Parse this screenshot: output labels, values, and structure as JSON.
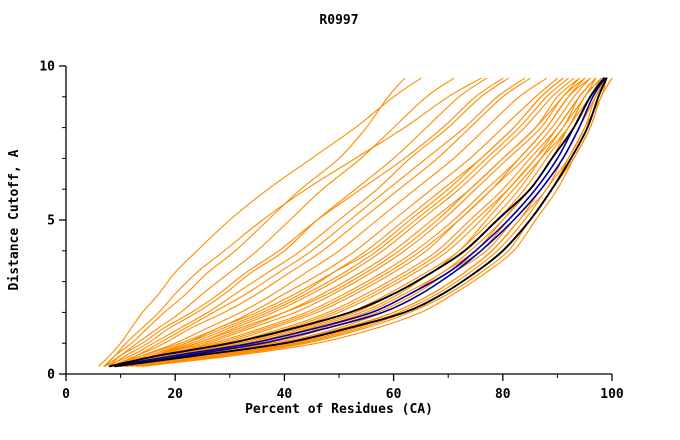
{
  "chart_data": {
    "type": "line",
    "title": "R0997",
    "xlabel": "Percent of Residues (CA)",
    "ylabel": "Distance Cutoff, A",
    "xlim": [
      0,
      100
    ],
    "ylim": [
      0,
      10
    ],
    "x_major_ticks": [
      0,
      20,
      40,
      60,
      80,
      100
    ],
    "x_minor_ticks": [
      10,
      30,
      50,
      70,
      90
    ],
    "y_major_ticks": [
      0,
      5,
      10
    ],
    "y_minor_ticks": [
      1,
      2,
      3,
      4,
      6,
      7,
      8,
      9
    ],
    "grid": false,
    "legend": false,
    "colors": {
      "orange": "#ff8c00",
      "blue": "#0000a0",
      "black": "#000000"
    },
    "y_levels": [
      0.25,
      0.6,
      1.0,
      1.5,
      2.0,
      2.6,
      3.3,
      4.0,
      5.0,
      6.0,
      7.0,
      8.0,
      9.0,
      9.6
    ],
    "series": [
      {
        "group": "orange",
        "x": [
          7,
          9,
          12,
          15,
          18,
          22,
          26,
          31,
          37,
          43,
          50,
          55,
          59,
          62
        ]
      },
      {
        "group": "orange",
        "x": [
          7,
          10,
          13,
          17,
          21,
          25,
          30,
          35,
          41,
          47,
          54,
          60,
          66,
          71
        ]
      },
      {
        "group": "orange",
        "x": [
          8,
          11,
          15,
          19,
          24,
          29,
          34,
          40,
          46,
          53,
          60,
          66,
          72,
          77
        ]
      },
      {
        "group": "orange",
        "x": [
          7,
          12,
          16,
          21,
          26,
          31,
          37,
          43,
          50,
          57,
          63,
          70,
          76,
          81
        ]
      },
      {
        "group": "orange",
        "x": [
          8,
          13,
          18,
          23,
          29,
          35,
          41,
          47,
          54,
          61,
          68,
          74,
          80,
          85
        ]
      },
      {
        "group": "orange",
        "x": [
          9,
          14,
          20,
          26,
          32,
          38,
          44,
          50,
          57,
          64,
          71,
          77,
          83,
          88
        ]
      },
      {
        "group": "orange",
        "x": [
          8,
          14,
          21,
          28,
          34,
          40,
          47,
          53,
          60,
          67,
          74,
          80,
          86,
          90
        ]
      },
      {
        "group": "orange",
        "x": [
          9,
          15,
          22,
          29,
          36,
          43,
          49,
          55,
          62,
          69,
          76,
          82,
          87,
          91
        ]
      },
      {
        "group": "orange",
        "x": [
          8,
          16,
          24,
          31,
          38,
          45,
          52,
          58,
          65,
          72,
          78,
          84,
          89,
          93
        ]
      },
      {
        "group": "orange",
        "x": [
          9,
          17,
          25,
          33,
          40,
          47,
          54,
          60,
          67,
          74,
          80,
          86,
          90,
          94
        ]
      },
      {
        "group": "orange",
        "x": [
          10,
          18,
          26,
          34,
          42,
          49,
          56,
          62,
          69,
          75,
          81,
          87,
          91,
          95
        ]
      },
      {
        "group": "orange",
        "x": [
          9,
          18,
          27,
          36,
          44,
          51,
          58,
          64,
          71,
          77,
          83,
          88,
          92,
          95
        ]
      },
      {
        "group": "orange",
        "x": [
          10,
          19,
          29,
          38,
          46,
          53,
          60,
          66,
          72,
          78,
          84,
          89,
          93,
          96
        ]
      },
      {
        "group": "orange",
        "x": [
          10,
          20,
          30,
          40,
          48,
          55,
          62,
          68,
          74,
          80,
          85,
          90,
          94,
          97
        ]
      },
      {
        "group": "orange",
        "x": [
          11,
          21,
          32,
          42,
          50,
          57,
          64,
          70,
          76,
          81,
          86,
          91,
          94,
          97
        ]
      },
      {
        "group": "orange",
        "x": [
          10,
          22,
          33,
          43,
          52,
          59,
          66,
          72,
          77,
          82,
          87,
          92,
          95,
          98
        ]
      },
      {
        "group": "orange",
        "x": [
          11,
          23,
          35,
          45,
          54,
          61,
          67,
          73,
          79,
          84,
          88,
          92,
          95,
          98
        ]
      },
      {
        "group": "orange",
        "x": [
          12,
          24,
          36,
          46,
          55,
          62,
          69,
          74,
          80,
          85,
          89,
          93,
          96,
          98
        ]
      },
      {
        "group": "orange",
        "x": [
          11,
          25,
          38,
          48,
          57,
          64,
          70,
          76,
          81,
          86,
          90,
          93,
          96,
          99
        ]
      },
      {
        "group": "orange",
        "x": [
          12,
          26,
          39,
          50,
          58,
          65,
          71,
          77,
          82,
          87,
          91,
          94,
          97,
          99
        ]
      },
      {
        "group": "orange",
        "x": [
          12,
          27,
          40,
          51,
          60,
          67,
          73,
          78,
          83,
          88,
          91,
          94,
          97,
          99
        ]
      },
      {
        "group": "orange",
        "x": [
          13,
          28,
          42,
          53,
          61,
          68,
          74,
          79,
          84,
          88,
          92,
          95,
          97,
          99
        ]
      },
      {
        "group": "orange",
        "x": [
          13,
          29,
          43,
          54,
          62,
          69,
          75,
          80,
          85,
          89,
          92,
          95,
          98,
          99
        ]
      },
      {
        "group": "orange",
        "x": [
          14,
          30,
          44,
          55,
          63,
          70,
          76,
          81,
          85,
          89,
          93,
          96,
          98,
          100
        ]
      },
      {
        "group": "orange",
        "x": [
          14,
          31,
          46,
          57,
          65,
          71,
          77,
          82,
          86,
          90,
          93,
          96,
          98,
          100
        ]
      },
      {
        "group": "orange",
        "x": [
          7,
          9,
          11,
          14,
          17,
          20,
          24,
          29,
          36,
          44,
          53,
          62,
          70,
          76
        ]
      },
      {
        "group": "orange",
        "x": [
          8,
          10,
          14,
          18,
          23,
          28,
          33,
          39,
          46,
          54,
          62,
          69,
          75,
          80
        ]
      },
      {
        "group": "orange",
        "x": [
          9,
          16,
          23,
          30,
          37,
          44,
          51,
          57,
          64,
          71,
          77,
          83,
          88,
          92
        ]
      },
      {
        "group": "orange",
        "x": [
          10,
          17,
          24,
          32,
          40,
          48,
          55,
          61,
          68,
          74,
          80,
          86,
          91,
          94
        ]
      },
      {
        "group": "orange",
        "x": [
          11,
          19,
          28,
          37,
          45,
          52,
          59,
          65,
          72,
          78,
          83,
          88,
          92,
          96
        ]
      },
      {
        "group": "orange",
        "x": [
          9,
          13,
          17,
          22,
          27,
          33,
          39,
          45,
          52,
          59,
          66,
          73,
          79,
          84
        ]
      },
      {
        "group": "orange",
        "x": [
          10,
          16,
          22,
          28,
          35,
          42,
          49,
          56,
          63,
          70,
          76,
          82,
          87,
          91
        ]
      },
      {
        "group": "orange",
        "x": [
          12,
          22,
          34,
          44,
          53,
          60,
          67,
          72,
          78,
          83,
          87,
          91,
          95,
          97
        ]
      },
      {
        "group": "orange",
        "x": [
          13,
          25,
          37,
          47,
          56,
          63,
          69,
          75,
          80,
          85,
          89,
          92,
          96,
          98
        ]
      },
      {
        "group": "orange",
        "x": [
          11,
          20,
          31,
          41,
          49,
          56,
          63,
          69,
          75,
          81,
          86,
          90,
          94,
          97
        ]
      },
      {
        "group": "orange",
        "x": [
          14,
          28,
          41,
          52,
          60,
          67,
          73,
          78,
          83,
          87,
          91,
          94,
          97,
          99
        ]
      },
      {
        "group": "orange",
        "x": [
          6,
          8,
          10,
          12,
          14,
          17,
          20,
          24,
          30,
          37,
          45,
          53,
          60,
          65
        ]
      },
      {
        "group": "blue",
        "x": [
          8,
          20,
          34,
          46,
          56,
          63,
          70,
          75,
          81,
          86,
          90,
          93,
          96,
          98.5
        ]
      },
      {
        "group": "blue",
        "x": [
          9,
          22,
          36,
          48,
          58,
          65,
          71,
          76,
          82,
          87,
          91,
          94,
          96.5,
          98.7
        ]
      },
      {
        "group": "black",
        "x": [
          8,
          17,
          30,
          42,
          52,
          60,
          67,
          73,
          79,
          85,
          89,
          93,
          96,
          98.5
        ]
      },
      {
        "group": "black",
        "x": [
          9,
          24,
          40,
          52,
          62,
          69,
          75,
          80,
          85,
          89,
          92.5,
          95.5,
          97.5,
          99
        ]
      }
    ]
  }
}
